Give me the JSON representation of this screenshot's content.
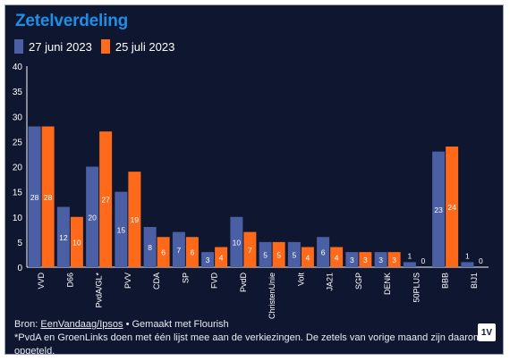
{
  "title": "Zetelverdeling",
  "source": {
    "prefix": "Bron: ",
    "link": "EenVandaag/Ipsos",
    "suffix": " • Gemaakt met Flourish"
  },
  "note": "*PvdA en GroenLinks doen met één lijst mee aan de verkiezingen. De zetels van vorige maand zijn daarom opgeteld.",
  "logo_text": "1V",
  "colors": {
    "background": "#0e1630",
    "title": "#1e8fe6",
    "series1": "#4b5fa5",
    "series2": "#ff6a1a"
  },
  "chart_data": {
    "type": "bar",
    "title": "Zetelverdeling",
    "categories": [
      "VVD",
      "D66",
      "PvdA/GL*",
      "PVV",
      "CDA",
      "SP",
      "FVD",
      "PvdD",
      "ChristenUnie",
      "Volt",
      "JA21",
      "SGP",
      "DENK",
      "50PLUS",
      "BBB",
      "BIJ1"
    ],
    "series": [
      {
        "name": "27 juni 2023",
        "color": "#4b5fa5",
        "values": [
          28,
          12,
          20,
          15,
          8,
          7,
          3,
          10,
          5,
          5,
          6,
          3,
          3,
          1,
          23,
          1
        ]
      },
      {
        "name": "25 juli 2023",
        "color": "#ff6a1a",
        "values": [
          28,
          10,
          27,
          19,
          6,
          6,
          4,
          7,
          5,
          4,
          4,
          3,
          3,
          0,
          24,
          0
        ]
      }
    ],
    "yticks": [
      0,
      5,
      10,
      15,
      20,
      25,
      30,
      35,
      40
    ],
    "ylim": [
      0,
      40
    ],
    "grid": false,
    "legend_position": "top-left"
  }
}
